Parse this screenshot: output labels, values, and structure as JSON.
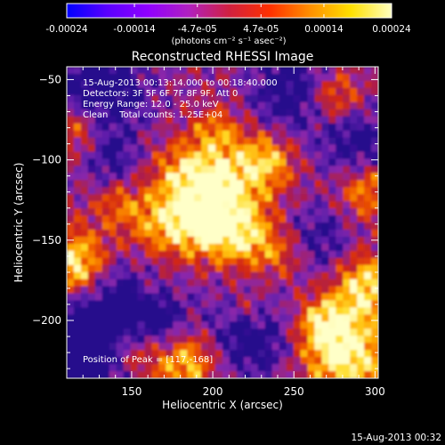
{
  "chart_data": {
    "type": "heatmap",
    "title": "Reconstructed RHESSI Image",
    "xlabel": "Heliocentric X (arcsec)",
    "ylabel": "Heliocentric Y (arcsec)",
    "xlim": [
      110,
      302
    ],
    "ylim": [
      -236,
      -42
    ],
    "x_ticks": [
      150,
      200,
      250,
      300
    ],
    "y_ticks": [
      -50,
      -100,
      -150,
      -200
    ],
    "annotations": [
      "15-Aug-2013 00:13:14.000 to 00:18:40.000",
      "Detectors: 3F 5F 6F 7F 8F 9F, Att 0",
      "Energy Range: 12.0 - 25.0 keV",
      "Clean    Total counts: 1.25E+04"
    ],
    "peak_label": "Position of Peak = [117,-168]",
    "peak": [
      117,
      -168
    ],
    "colorbar": {
      "ticks": [
        "-0.00024",
        "-0.00014",
        "-4.7e-05",
        "4.7e-05",
        "0.00014",
        "0.00024"
      ],
      "tick_values": [
        -0.00024,
        -0.00014,
        -4.7e-05,
        4.7e-05,
        0.00014,
        0.00024
      ],
      "vmin": -0.00024,
      "vmax": 0.00024,
      "unit": "(photons cm⁻² s⁻¹ asec⁻²)",
      "colors": [
        "#0000ff",
        "#5a00ff",
        "#9000ff",
        "#b020c0",
        "#d02040",
        "#ff3000",
        "#ff9000",
        "#ffe000",
        "#ffffc0"
      ]
    },
    "grid": false,
    "timestamp": "15-Aug-2013 00:32"
  }
}
